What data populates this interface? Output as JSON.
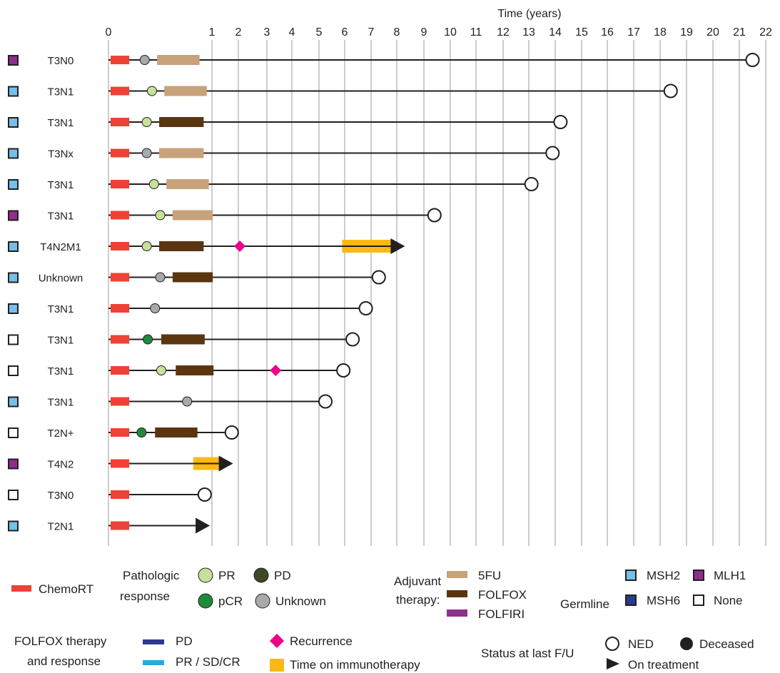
{
  "colors": {
    "chemort": "#ef4136",
    "pr": "#c7e09a",
    "pd": "#3e4a24",
    "pcr": "#1f8a3c",
    "unknown_response": "#a7a9ac",
    "fu5": "#c8a27a",
    "folfox": "#5a3510",
    "folfiri": "#8e2e8e",
    "folfox_pd": "#2b3990",
    "folfox_pr": "#27aae1",
    "recurrence": "#ec008c",
    "immunotherapy": "#fdb913",
    "msh2": "#74c0e9",
    "msh6": "#2b3990",
    "mlh1": "#8e2e8e",
    "none": "#ffffff",
    "gridline": "#cccccc",
    "line": "#231f20"
  },
  "chart_data": {
    "type": "swimmer",
    "xlabel": "Time (years)",
    "xlim": [
      0,
      22
    ],
    "tick_labels": [
      "0",
      "1",
      "2",
      "3",
      "4",
      "5",
      "6",
      "7",
      "8",
      "9",
      "10",
      "11",
      "12",
      "13",
      "14",
      "15",
      "16",
      "17",
      "18",
      "19",
      "20",
      "21",
      "22"
    ],
    "tick_values": [
      0,
      1,
      2,
      3,
      4,
      5,
      6,
      7,
      8,
      9,
      10,
      11,
      12,
      13,
      14,
      15,
      16,
      17,
      18,
      19,
      20,
      21,
      22
    ],
    "patients": [
      {
        "stage": "T3N0",
        "germline": "MLH1",
        "chemort": [
          0.0,
          0.18
        ],
        "response": "Unknown",
        "response_t": 0.35,
        "adjuvant": {
          "type": "5FU",
          "start": 0.47,
          "end": 0.88
        },
        "recurrence": null,
        "immunotherapy": null,
        "status": "NED",
        "end": 21.5
      },
      {
        "stage": "T3N1",
        "germline": "MSH2",
        "chemort": [
          0.0,
          0.18
        ],
        "response": "PR",
        "response_t": 0.42,
        "adjuvant": {
          "type": "5FU",
          "start": 0.54,
          "end": 0.95
        },
        "recurrence": null,
        "immunotherapy": null,
        "status": "NED",
        "end": 18.4
      },
      {
        "stage": "T3N1",
        "germline": "MSH2",
        "chemort": [
          0.0,
          0.18
        ],
        "response": "PR",
        "response_t": 0.37,
        "adjuvant": {
          "type": "FOLFOX",
          "start": 0.49,
          "end": 0.92
        },
        "recurrence": null,
        "immunotherapy": null,
        "status": "NED",
        "end": 14.2
      },
      {
        "stage": "T3Nx",
        "germline": "MSH2",
        "chemort": [
          0.0,
          0.18
        ],
        "response": "Unknown",
        "response_t": 0.37,
        "adjuvant": {
          "type": "5FU",
          "start": 0.49,
          "end": 0.92
        },
        "recurrence": null,
        "immunotherapy": null,
        "status": "NED",
        "end": 13.9
      },
      {
        "stage": "T3N1",
        "germline": "MSH2",
        "chemort": [
          0.0,
          0.18
        ],
        "response": "PR",
        "response_t": 0.44,
        "adjuvant": {
          "type": "5FU",
          "start": 0.56,
          "end": 0.97
        },
        "recurrence": null,
        "immunotherapy": null,
        "status": "NED",
        "end": 13.1
      },
      {
        "stage": "T3N1",
        "germline": "MLH1",
        "chemort": [
          0.0,
          0.18
        ],
        "response": "PR",
        "response_t": 0.5,
        "adjuvant": {
          "type": "5FU",
          "start": 0.62,
          "end": 1.03
        },
        "recurrence": null,
        "immunotherapy": null,
        "status": "NED",
        "end": 9.4
      },
      {
        "stage": "T4N2M1",
        "germline": "MSH2",
        "chemort": [
          0.0,
          0.18
        ],
        "response": "PR",
        "response_t": 0.37,
        "adjuvant": {
          "type": "FOLFOX",
          "start": 0.49,
          "end": 0.92
        },
        "recurrence": 2.05,
        "immunotherapy": [
          5.9,
          7.85
        ],
        "status": "On treatment",
        "end": 8.3
      },
      {
        "stage": "Unknown",
        "germline": "MSH2",
        "chemort": [
          0.0,
          0.18
        ],
        "response": "Unknown",
        "response_t": 0.5,
        "adjuvant": {
          "type": "FOLFOX",
          "start": 0.62,
          "end": 1.03
        },
        "recurrence": null,
        "immunotherapy": null,
        "status": "NED",
        "end": 7.3
      },
      {
        "stage": "T3N1",
        "germline": "MSH2",
        "chemort": [
          0.0,
          0.18
        ],
        "response": "Unknown",
        "response_t": 0.45,
        "adjuvant": null,
        "recurrence": null,
        "immunotherapy": null,
        "status": "NED",
        "end": 6.8
      },
      {
        "stage": "T3N1",
        "germline": "None",
        "chemort": [
          0.0,
          0.18
        ],
        "response": "pCR",
        "response_t": 0.38,
        "adjuvant": {
          "type": "FOLFOX",
          "start": 0.51,
          "end": 0.93
        },
        "recurrence": null,
        "immunotherapy": null,
        "status": "NED",
        "end": 6.3
      },
      {
        "stage": "T3N1",
        "germline": "None",
        "chemort": [
          0.0,
          0.18
        ],
        "response": "PR",
        "response_t": 0.51,
        "adjuvant": {
          "type": "FOLFOX",
          "start": 0.65,
          "end": 1.06
        },
        "recurrence": 3.35,
        "immunotherapy": null,
        "status": "NED",
        "end": 5.95
      },
      {
        "stage": "T3N1",
        "germline": "MSH2",
        "chemort": [
          0.0,
          0.18
        ],
        "response": "Unknown",
        "response_t": 0.76,
        "adjuvant": null,
        "recurrence": null,
        "immunotherapy": null,
        "status": "NED",
        "end": 5.25
      },
      {
        "stage": "T2N+",
        "germline": "None",
        "chemort": [
          0.0,
          0.18
        ],
        "response": "pCR",
        "response_t": 0.32,
        "adjuvant": {
          "type": "FOLFOX",
          "start": 0.45,
          "end": 0.86
        },
        "recurrence": null,
        "immunotherapy": null,
        "status": "NED",
        "end": 1.75
      },
      {
        "stage": "T4N2",
        "germline": "MLH1",
        "chemort": [
          0.0,
          0.18
        ],
        "response": null,
        "response_t": null,
        "adjuvant": null,
        "recurrence": null,
        "immunotherapy": [
          0.82,
          1.4
        ],
        "status": "On treatment",
        "end": 1.8
      },
      {
        "stage": "T3N0",
        "germline": "None",
        "chemort": [
          0.0,
          0.18
        ],
        "response": null,
        "response_t": null,
        "adjuvant": null,
        "recurrence": null,
        "immunotherapy": null,
        "status": "NED",
        "end": 0.93
      },
      {
        "stage": "T2N1",
        "germline": "MSH2",
        "chemort": [
          0.0,
          0.18
        ],
        "response": null,
        "response_t": null,
        "adjuvant": null,
        "recurrence": null,
        "immunotherapy": null,
        "status": "On treatment",
        "end": 0.98
      }
    ]
  },
  "legend": {
    "chemort": "ChemoRT",
    "pathologic_response_title": [
      "Pathologic",
      "response"
    ],
    "pr": "PR",
    "pd": "PD",
    "pcr": "pCR",
    "unknown": "Unknown",
    "adjuvant_title": [
      "Adjuvant",
      "therapy:"
    ],
    "fu5": "5FU",
    "folfox": "FOLFOX",
    "folfiri": "FOLFIRI",
    "germline_title": "Germline",
    "msh2": "MSH2",
    "mlh1": "MLH1",
    "msh6": "MSH6",
    "none": "None",
    "folfox_title": [
      "FOLFOX therapy",
      "and response"
    ],
    "folfox_pd": "PD",
    "folfox_pr": "PR / SD/CR",
    "recurrence": "Recurrence",
    "immunotherapy": "Time on immunotherapy",
    "status_title": "Status at last F/U",
    "ned": "NED",
    "deceased": "Deceased",
    "on_treatment": "On treatment"
  }
}
